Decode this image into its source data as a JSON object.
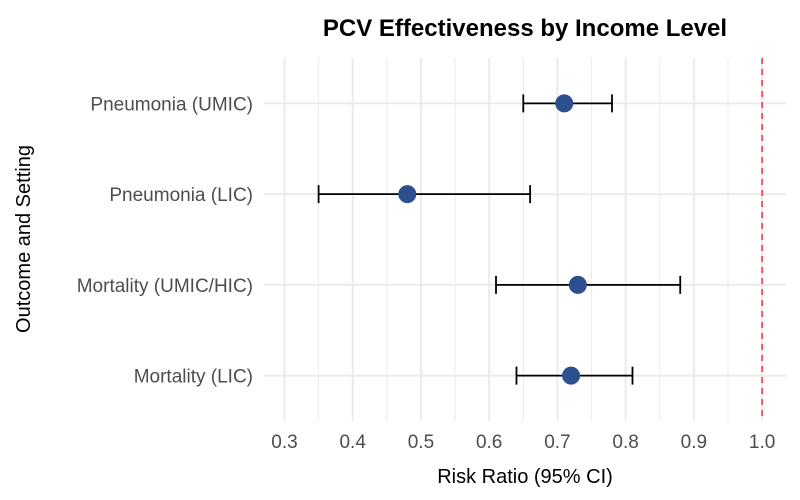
{
  "chart_data": {
    "type": "forest",
    "title": "PCV Effectiveness by Income Level",
    "xlabel": "Risk Ratio (95% CI)",
    "ylabel": "Outcome and Setting",
    "xlim": [
      0.27,
      1.035
    ],
    "xticks": [
      "0.3",
      "0.4",
      "0.5",
      "0.6",
      "0.7",
      "0.8",
      "0.9",
      "1.0"
    ],
    "categories": [
      "Pneumonia (UMIC)",
      "Pneumonia (LIC)",
      "Mortality (UMIC/HIC)",
      "Mortality (LIC)"
    ],
    "estimates": [
      0.71,
      0.48,
      0.73,
      0.72
    ],
    "lower": [
      0.65,
      0.35,
      0.61,
      0.64
    ],
    "upper": [
      0.78,
      0.66,
      0.88,
      0.81
    ],
    "reference_line": 1.0,
    "grid": true,
    "colors": {
      "point": "#2b4f8f",
      "reference_line": "#e0484b",
      "grid": "#ebebeb",
      "error_bar": "#000000"
    }
  }
}
